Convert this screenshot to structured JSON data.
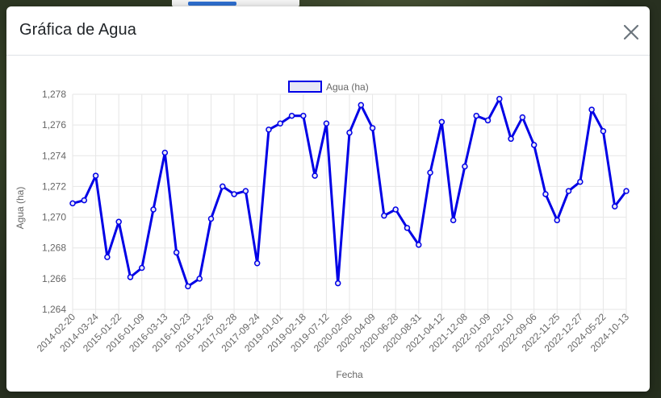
{
  "modal": {
    "title": "Gráfica de Agua",
    "close_icon": "close-icon"
  },
  "chart_data": {
    "type": "line",
    "xlabel": "Fecha",
    "ylabel": "Agua (ha)",
    "ylim": [
      1264,
      1278
    ],
    "yticks": [
      "1,264",
      "1,266",
      "1,268",
      "1,270",
      "1,272",
      "1,274",
      "1,276",
      "1,278"
    ],
    "legend_position": "top",
    "grid": true,
    "color": "#0000e6",
    "x_tick_labels": [
      "2014-02-20",
      "2014-03-24",
      "2015-01-22",
      "2016-01-09",
      "2016-03-13",
      "2016-10-23",
      "2016-12-26",
      "2017-02-28",
      "2017-09-24",
      "2019-01-01",
      "2019-02-18",
      "2019-07-12",
      "2020-02-05",
      "2020-04-09",
      "2020-06-28",
      "2020-08-31",
      "2021-04-12",
      "2021-12-08",
      "2022-01-09",
      "2022-02-10",
      "2022-09-06",
      "2022-11-25",
      "2022-12-27",
      "2024-05-22",
      "2024-10-13"
    ],
    "series": [
      {
        "name": "Agua (ha)",
        "values": [
          1270.9,
          1271.1,
          1272.7,
          1267.4,
          1269.7,
          1266.1,
          1266.7,
          1270.5,
          1274.2,
          1267.7,
          1265.5,
          1266.0,
          1269.9,
          1272.0,
          1271.5,
          1271.7,
          1267.0,
          1275.7,
          1276.1,
          1276.6,
          1276.6,
          1272.7,
          1276.1,
          1265.7,
          1275.5,
          1277.3,
          1275.8,
          1270.1,
          1270.5,
          1269.3,
          1268.2,
          1272.9,
          1276.2,
          1269.8,
          1273.3,
          1276.6,
          1276.3,
          1277.7,
          1275.1,
          1276.5,
          1274.7,
          1271.5,
          1269.8,
          1271.7,
          1272.3,
          1277.0,
          1275.6,
          1270.7,
          1271.7
        ]
      }
    ]
  }
}
